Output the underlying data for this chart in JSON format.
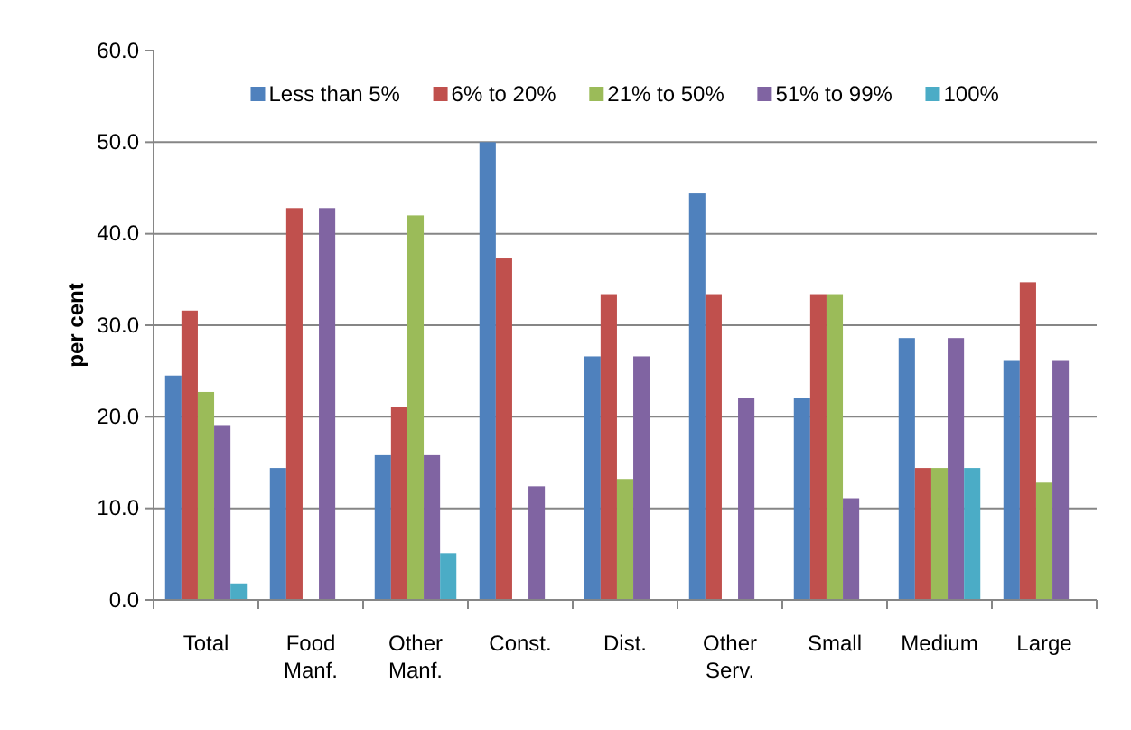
{
  "chart_data": {
    "type": "bar",
    "ylabel": "per cent",
    "categories": [
      "Total",
      "Food Manf.",
      "Other Manf.",
      "Const.",
      "Dist.",
      "Other Serv.",
      "Small",
      "Medium",
      "Large"
    ],
    "series": [
      {
        "name": "Less than 5%",
        "color": "#4f81bd",
        "values": [
          24.5,
          14.4,
          15.8,
          50.0,
          26.6,
          44.4,
          22.1,
          28.6,
          26.1
        ]
      },
      {
        "name": "6% to 20%",
        "color": "#c0504d",
        "values": [
          31.6,
          42.8,
          21.1,
          37.3,
          33.4,
          33.4,
          33.4,
          14.4,
          34.7
        ]
      },
      {
        "name": "21% to 50%",
        "color": "#9bbb59",
        "values": [
          22.7,
          null,
          42.0,
          null,
          13.2,
          null,
          33.4,
          14.4,
          12.8
        ]
      },
      {
        "name": "51% to 99%",
        "color": "#8064a2",
        "values": [
          19.1,
          42.8,
          15.8,
          12.4,
          26.6,
          22.1,
          11.1,
          28.6,
          26.1
        ]
      },
      {
        "name": "100%",
        "color": "#4bacc6",
        "values": [
          1.8,
          null,
          5.1,
          null,
          null,
          null,
          null,
          14.4,
          null
        ]
      }
    ],
    "ylim": [
      0,
      60
    ],
    "yticks": [
      {
        "value": 0,
        "label": "0.0"
      },
      {
        "value": 10,
        "label": "10.0"
      },
      {
        "value": 20,
        "label": "20.0"
      },
      {
        "value": 30,
        "label": "30.0"
      },
      {
        "value": 40,
        "label": "40.0"
      },
      {
        "value": 50,
        "label": "50.0"
      },
      {
        "value": 60,
        "label": "60.0"
      }
    ],
    "grid": "y",
    "legend": "top"
  }
}
